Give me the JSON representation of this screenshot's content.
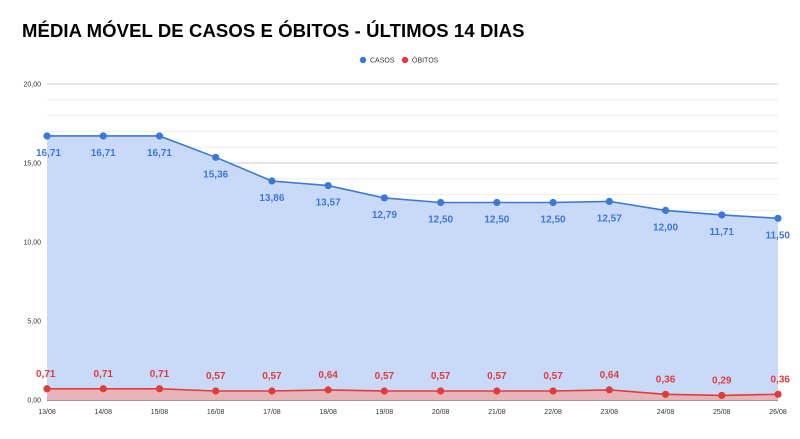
{
  "title": "MÉDIA MÓVEL DE CASOS E ÓBITOS - ÚLTIMOS 14 DIAS",
  "chart_data": {
    "type": "area",
    "categories": [
      "13/08",
      "14/08",
      "15/08",
      "16/08",
      "17/08",
      "18/08",
      "19/08",
      "20/08",
      "21/08",
      "22/08",
      "23/08",
      "24/08",
      "25/08",
      "26/08"
    ],
    "ylim": [
      0,
      20
    ],
    "yticks": [
      "0,00",
      "5,00",
      "10,00",
      "15,00",
      "20,00"
    ],
    "grid": true,
    "legend_position": "top-center",
    "series": [
      {
        "name": "CASOS",
        "color": "#3c78d8",
        "fill": "#c9daf8",
        "values": [
          16.71,
          16.71,
          16.71,
          15.36,
          13.86,
          13.57,
          12.79,
          12.5,
          12.5,
          12.5,
          12.57,
          12.0,
          11.71,
          11.5
        ],
        "labels": [
          "16,71",
          "16,71",
          "16,71",
          "15,36",
          "13,86",
          "13,57",
          "12,79",
          "12,50",
          "12,50",
          "12,50",
          "12,57",
          "12,00",
          "11,71",
          "11,50"
        ]
      },
      {
        "name": "ÓBITOS",
        "color": "#e03c3c",
        "fill": "#e8b4b8",
        "values": [
          0.71,
          0.71,
          0.71,
          0.57,
          0.57,
          0.64,
          0.57,
          0.57,
          0.57,
          0.57,
          0.64,
          0.36,
          0.29,
          0.36
        ],
        "labels": [
          "0,71",
          "0,71",
          "0,71",
          "0,57",
          "0,57",
          "0,64",
          "0,57",
          "0,57",
          "0,57",
          "0,57",
          "0,64",
          "0,36",
          "0,29",
          "0,36"
        ]
      }
    ]
  }
}
